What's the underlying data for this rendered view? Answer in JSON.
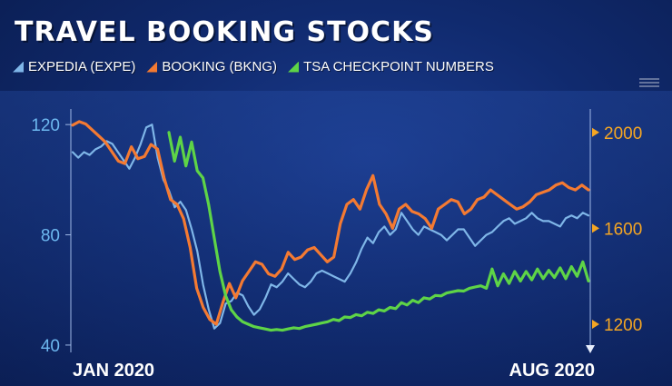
{
  "title": "TRAVEL BOOKING STOCKS",
  "legend": [
    {
      "label": "EXPEDIA (EXPE)",
      "color": "#7fb6e8"
    },
    {
      "label": "BOOKING (BKNG)",
      "color": "#f47a32"
    },
    {
      "label": "TSA CHECKPOINT NUMBERS",
      "color": "#5ed447"
    }
  ],
  "chart_data": {
    "type": "line",
    "x_labels": [
      "JAN 2020",
      "AUG 2020"
    ],
    "left_axis": {
      "ticks": [
        "120",
        "80",
        "40"
      ],
      "tick_values": [
        120,
        80,
        40
      ],
      "range": [
        38,
        125
      ]
    },
    "right_axis": {
      "ticks": [
        "2000",
        "1600",
        "1200"
      ],
      "tick_values": [
        2000,
        1600,
        1200
      ],
      "range": [
        1090,
        2090
      ]
    },
    "series": [
      {
        "name": "EXPEDIA (EXPE)",
        "axis": "left",
        "color": "#7fb6e8",
        "values": [
          110,
          108,
          110,
          109,
          111,
          112,
          114,
          113,
          110,
          107,
          104,
          108,
          113,
          119,
          120,
          108,
          100,
          96,
          90,
          92,
          89,
          82,
          74,
          62,
          53,
          46,
          48,
          55,
          56,
          59,
          58,
          54,
          51,
          53,
          57,
          62,
          61,
          63,
          66,
          64,
          62,
          61,
          63,
          66,
          67,
          66,
          65,
          64,
          63,
          66,
          70,
          75,
          79,
          77,
          81,
          83,
          80,
          82,
          88,
          85,
          82,
          80,
          83,
          82,
          81,
          80,
          78,
          80,
          82,
          82,
          79,
          76,
          78,
          80,
          81,
          83,
          85,
          86,
          84,
          85,
          86,
          88,
          86,
          85,
          85,
          84,
          83,
          86,
          87,
          86,
          88,
          87
        ]
      },
      {
        "name": "BOOKING (BKNG)",
        "axis": "right",
        "color": "#f47a32",
        "values": [
          2030,
          2045,
          2035,
          2010,
          1985,
          1960,
          1920,
          1880,
          1870,
          1940,
          1890,
          1900,
          1950,
          1930,
          1810,
          1720,
          1700,
          1640,
          1520,
          1350,
          1270,
          1220,
          1200,
          1290,
          1370,
          1310,
          1380,
          1420,
          1460,
          1450,
          1410,
          1400,
          1430,
          1500,
          1470,
          1480,
          1510,
          1520,
          1490,
          1460,
          1480,
          1620,
          1700,
          1720,
          1680,
          1760,
          1820,
          1700,
          1660,
          1600,
          1680,
          1700,
          1670,
          1660,
          1640,
          1600,
          1680,
          1700,
          1720,
          1710,
          1660,
          1680,
          1720,
          1730,
          1760,
          1740,
          1720,
          1700,
          1680,
          1690,
          1710,
          1740,
          1750,
          1760,
          1780,
          1790,
          1770,
          1760,
          1780,
          1760
        ]
      },
      {
        "name": "TSA CHECKPOINT NUMBERS",
        "axis": "right",
        "color": "#5ed447",
        "values": [
          2000,
          1880,
          1980,
          1860,
          1960,
          1840,
          1810,
          1700,
          1560,
          1420,
          1320,
          1260,
          1230,
          1210,
          1200,
          1190,
          1185,
          1180,
          1175,
          1178,
          1175,
          1180,
          1185,
          1182,
          1190,
          1195,
          1200,
          1205,
          1210,
          1220,
          1215,
          1230,
          1228,
          1240,
          1235,
          1250,
          1245,
          1260,
          1255,
          1270,
          1265,
          1290,
          1280,
          1300,
          1290,
          1310,
          1305,
          1320,
          1318,
          1330,
          1335,
          1340,
          1338,
          1350,
          1355,
          1360,
          1350,
          1430,
          1360,
          1410,
          1370,
          1420,
          1380,
          1420,
          1385,
          1430,
          1390,
          1425,
          1395,
          1435,
          1390,
          1440,
          1400,
          1460,
          1380
        ]
      }
    ]
  }
}
